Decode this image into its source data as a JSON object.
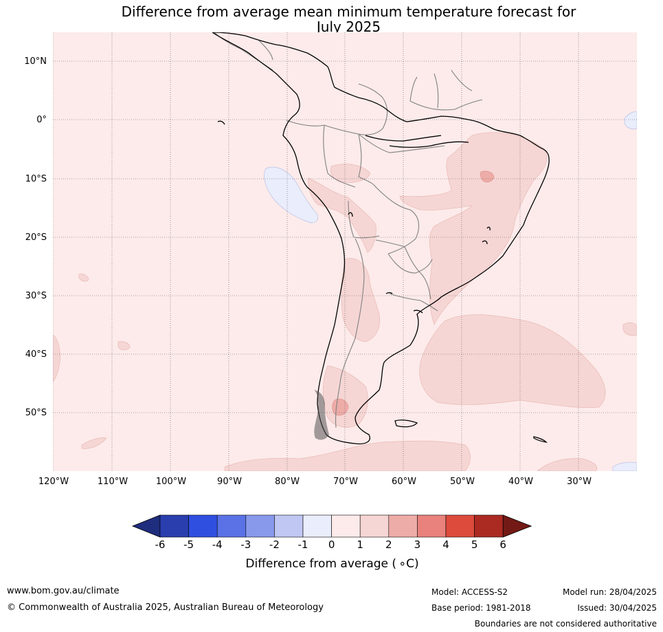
{
  "title": {
    "line1": "Difference from average mean minimum temperature forecast for",
    "line2": "July 2025"
  },
  "map": {
    "region": "South America",
    "projection": "Plate Carree",
    "lat_labels": [
      "10°N",
      "0°",
      "10°S",
      "20°S",
      "30°S",
      "40°S",
      "50°S"
    ],
    "lon_labels": [
      "120°W",
      "110°W",
      "100°W",
      "90°W",
      "80°W",
      "70°W",
      "60°W",
      "50°W",
      "40°W",
      "30°W"
    ],
    "background_anomaly_class": "0 to 1",
    "colors": {
      "bg_0_1": "#fcebea",
      "cls_1_2": "#f5d6d4",
      "cls_2_3": "#eeaca8",
      "cls_neg1_0": "#eaedfb",
      "coast": "#000000",
      "border": "#808080",
      "grid": "#555555"
    }
  },
  "colorbar": {
    "label": "Difference from average ( ∘C)",
    "ticks": [
      "-6",
      "-5",
      "-4",
      "-3",
      "-2",
      "-1",
      "0",
      "1",
      "2",
      "3",
      "4",
      "5",
      "6"
    ],
    "colors": [
      "#1f2d7e",
      "#2a3eae",
      "#2f4fe0",
      "#5b72e6",
      "#8899ec",
      "#c0c7f3",
      "#eaedfb",
      "#fcebea",
      "#f5d6d4",
      "#eeaca8",
      "#e9827c",
      "#dc4b3c",
      "#ab2a22",
      "#731a16"
    ]
  },
  "footer": {
    "url": "www.bom.gov.au/climate",
    "copyright": "© Commonwealth of Australia 2025, Australian Bureau of Meteorology",
    "model": "Model: ACCESS-S2",
    "base_period": "Base period: 1981-2018",
    "model_run": "Model run: 28/04/2025",
    "issued": "Issued: 30/04/2025",
    "disclaimer": "Boundaries are not considered authoritative"
  }
}
